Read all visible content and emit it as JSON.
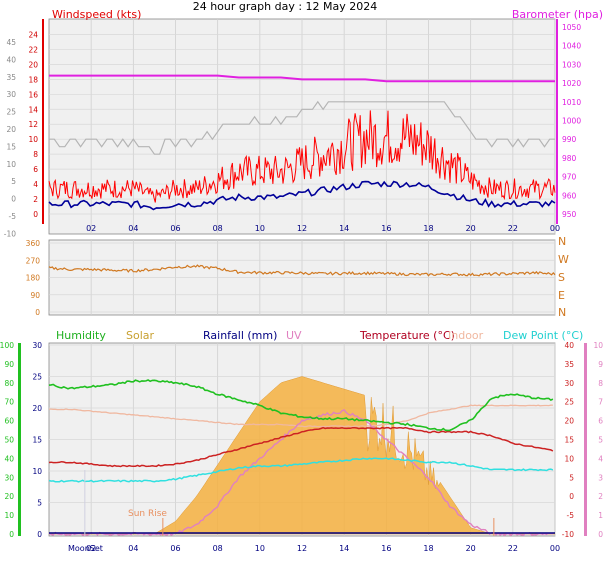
{
  "title": "24 hour graph day : 12 May 2024",
  "x_tick_labels": [
    "02",
    "04",
    "06",
    "08",
    "10",
    "12",
    "14",
    "16",
    "18",
    "20",
    "22",
    "00"
  ],
  "colors": {
    "windspeed": "#ff0000",
    "avg_wind": "#000099",
    "barometer": "#e020e0",
    "gust_grey": "#b4b4b4",
    "direction": "#d07820",
    "humidity": "#20c020",
    "solar": "#f5b040",
    "rainfall": "#000080",
    "uv": "#e080c0",
    "temperature": "#cc2222",
    "indoor": "#f0b8a0",
    "dew_point": "#30e0e0",
    "sun_line": "#e89060"
  },
  "panel1": {
    "left_label": "Windspeed (kts)",
    "right_label": "Barometer (hpa)",
    "left_outer_ticks": [
      "45",
      "40",
      "35",
      "30",
      "25",
      "20",
      "15",
      "10",
      "5",
      "0",
      "-5",
      "-10"
    ],
    "left_inner_ticks": [
      "24",
      "22",
      "20",
      "18",
      "16",
      "14",
      "12",
      "10",
      "8",
      "6",
      "4",
      "2",
      "0"
    ],
    "right_ticks": [
      "1050",
      "1040",
      "1030",
      "1020",
      "1010",
      "1000",
      "990",
      "980",
      "970",
      "960",
      "950"
    ]
  },
  "panel2": {
    "left_ticks": [
      "360",
      "270",
      "180",
      "90",
      "0"
    ],
    "right_ticks": [
      "N",
      "W",
      "S",
      "E",
      "N"
    ]
  },
  "panel3": {
    "labels": {
      "humidity": "Humidity",
      "solar": "Solar",
      "rainfall": "Rainfall (mm)",
      "uv": "UV",
      "temperature": "Temperature (°C)",
      "indoor": "Indoor",
      "dew_point": "Dew Point (°C)"
    },
    "humidity_ticks": [
      "100",
      "90",
      "80",
      "70",
      "60",
      "50",
      "40",
      "30",
      "20",
      "10",
      "0"
    ],
    "rain_ticks": [
      "30",
      "25",
      "20",
      "15",
      "10",
      "5",
      "0"
    ],
    "temp_ticks": [
      "40",
      "35",
      "30",
      "25",
      "20",
      "15",
      "10",
      "5",
      "0",
      "-5",
      "-10"
    ],
    "uv_ticks": [
      "10",
      "9",
      "8",
      "7",
      "6",
      "5",
      "4",
      "3",
      "2",
      "1",
      "0"
    ],
    "annotations": {
      "sunrise": "Sun Rise",
      "moonset": "MoonSet"
    }
  },
  "chart_data": [
    {
      "type": "line",
      "title": "24 hour graph day : 12 May 2024",
      "xlabel": "",
      "ylabel": "Windspeed (kts)",
      "x_hours": [
        0,
        1,
        2,
        3,
        4,
        5,
        6,
        7,
        8,
        9,
        10,
        11,
        12,
        13,
        14,
        15,
        16,
        17,
        18,
        19,
        20,
        21,
        22,
        23,
        24
      ],
      "ylim": [
        0,
        25
      ],
      "y2label": "Barometer (hpa)",
      "y2lim": [
        945,
        1050
      ],
      "series": [
        {
          "name": "Windspeed (kts)",
          "values": [
            3,
            3,
            3,
            3,
            3,
            2,
            3,
            3,
            4,
            5,
            5,
            5,
            6,
            7,
            8,
            9,
            9,
            9,
            8,
            6,
            4,
            3,
            3,
            3,
            3
          ]
        },
        {
          "name": "Barometer (hpa)",
          "axis": "right",
          "values": [
            1024,
            1024,
            1024,
            1024,
            1024,
            1024,
            1024,
            1024,
            1024,
            1023,
            1023,
            1023,
            1022,
            1022,
            1022,
            1022,
            1021,
            1021,
            1021,
            1021,
            1021,
            1021,
            1021,
            1021,
            1021
          ]
        }
      ]
    },
    {
      "type": "line",
      "ylabel": "Wind direction",
      "ylim": [
        0,
        360
      ],
      "x_hours": [
        0,
        1,
        2,
        3,
        4,
        5,
        6,
        7,
        8,
        9,
        10,
        11,
        12,
        13,
        14,
        15,
        16,
        17,
        18,
        19,
        20,
        21,
        22,
        23,
        24
      ],
      "series": [
        {
          "name": "Wind direction",
          "values": [
            230,
            222,
            222,
            218,
            215,
            222,
            235,
            238,
            228,
            208,
            205,
            205,
            203,
            200,
            202,
            203,
            200,
            197,
            195,
            198,
            195,
            197,
            200,
            205,
            198
          ]
        }
      ]
    },
    {
      "type": "line",
      "x_hours": [
        0,
        1,
        2,
        3,
        4,
        5,
        6,
        7,
        8,
        9,
        10,
        11,
        12,
        13,
        14,
        15,
        16,
        17,
        18,
        19,
        20,
        21,
        22,
        23,
        24
      ],
      "ylabel": "Humidity",
      "ylim": [
        0,
        100
      ],
      "series": [
        {
          "name": "Humidity",
          "values": [
            79,
            77,
            78,
            79,
            81,
            81,
            80,
            78,
            74,
            71,
            68,
            64,
            62,
            61,
            61,
            60,
            59,
            58,
            56,
            55,
            60,
            72,
            74,
            72,
            71
          ]
        },
        {
          "name": "Temperature (°C)",
          "axis": "temp",
          "values": [
            9,
            9,
            8.5,
            8,
            8,
            8,
            8.5,
            9.5,
            11,
            12.5,
            14,
            15.5,
            17,
            18,
            18,
            18,
            18,
            18,
            17,
            17,
            17,
            16,
            14,
            13,
            12
          ]
        },
        {
          "name": "Dew Point (°C)",
          "axis": "temp",
          "values": [
            4,
            4,
            4,
            4,
            4,
            4,
            4.5,
            5.5,
            6.5,
            7.5,
            8,
            8,
            8.5,
            9,
            9.5,
            10,
            10,
            9.5,
            9,
            9,
            8,
            7,
            7,
            7,
            7
          ]
        },
        {
          "name": "Indoor",
          "axis": "temp",
          "values": [
            23,
            23,
            22.5,
            22,
            21.5,
            21,
            20.5,
            20,
            19.5,
            19,
            19,
            19,
            18.5,
            18.5,
            18.5,
            18.5,
            19,
            20,
            22,
            23,
            24,
            24,
            24,
            24,
            24
          ]
        },
        {
          "name": "Solar",
          "axis": "rain",
          "values": [
            0,
            0,
            0,
            0,
            0,
            0,
            2,
            6,
            11,
            16,
            21,
            24,
            25,
            24,
            23,
            22,
            20,
            16,
            11,
            6,
            1,
            0,
            0,
            0,
            0
          ]
        },
        {
          "name": "UV",
          "axis": "uv",
          "values": [
            0,
            0,
            0,
            0,
            0,
            0,
            0,
            0.5,
            1.5,
            3,
            4,
            5,
            6,
            6.3,
            6.5,
            6,
            5,
            4,
            3,
            1.5,
            0.5,
            0,
            0,
            0,
            0
          ]
        }
      ]
    }
  ]
}
